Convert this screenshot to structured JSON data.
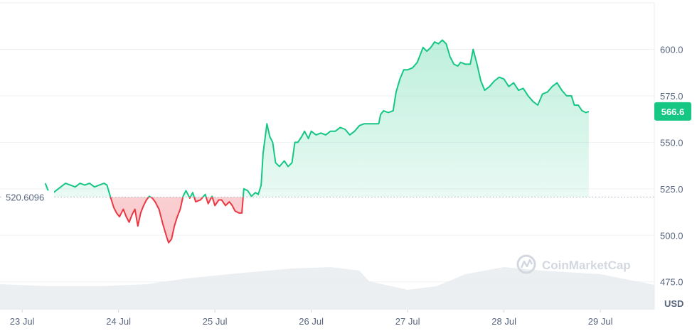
{
  "chart_data": {
    "type": "area",
    "title": "",
    "xlabel": "",
    "ylabel": "",
    "unit": "USD",
    "current_price": "566.6",
    "reference_price": "520.6096",
    "reference_value": 520.6096,
    "ylim": [
      460,
      625
    ],
    "y_ticks": [
      {
        "value": 475,
        "label": "475.0"
      },
      {
        "value": 500,
        "label": "500.0"
      },
      {
        "value": 525,
        "label": "525.0"
      },
      {
        "value": 550,
        "label": "550.0"
      },
      {
        "value": 575,
        "label": "575.0"
      },
      {
        "value": 600,
        "label": "600.0"
      }
    ],
    "x_ticks": [
      {
        "day": 0,
        "label": "23 Jul"
      },
      {
        "day": 1,
        "label": "24 Jul"
      },
      {
        "day": 2,
        "label": "25 Jul"
      },
      {
        "day": 3,
        "label": "26 Jul"
      },
      {
        "day": 4,
        "label": "27 Jul"
      },
      {
        "day": 5,
        "label": "28 Jul"
      },
      {
        "day": 6,
        "label": "29 Jul"
      }
    ],
    "x_range": [
      -0.23,
      6.56
    ],
    "colors": {
      "up": "#16c784",
      "down": "#ea3943",
      "grid": "#eff2f5",
      "volume": "#e6e9ee",
      "badge": "#16c784"
    },
    "series": [
      {
        "points": [
          [
            0.24,
            528
          ],
          [
            0.27,
            524
          ],
          [
            0.3,
            522
          ],
          [
            0.35,
            524
          ],
          [
            0.4,
            526
          ],
          [
            0.45,
            528
          ],
          [
            0.5,
            527
          ],
          [
            0.55,
            526
          ],
          [
            0.6,
            528
          ],
          [
            0.65,
            527
          ],
          [
            0.7,
            528
          ],
          [
            0.75,
            526
          ],
          [
            0.8,
            527
          ],
          [
            0.85,
            528
          ],
          [
            0.88,
            527
          ],
          [
            0.92,
            520
          ],
          [
            0.95,
            515
          ],
          [
            0.98,
            512
          ],
          [
            1.01,
            510
          ],
          [
            1.05,
            514
          ],
          [
            1.08,
            510
          ],
          [
            1.11,
            507
          ],
          [
            1.14,
            511
          ],
          [
            1.17,
            514
          ],
          [
            1.2,
            505
          ],
          [
            1.23,
            512
          ],
          [
            1.26,
            516
          ],
          [
            1.29,
            519
          ],
          [
            1.32,
            521
          ],
          [
            1.35,
            520
          ],
          [
            1.38,
            518
          ],
          [
            1.42,
            514
          ],
          [
            1.46,
            506
          ],
          [
            1.5,
            499
          ],
          [
            1.52,
            496
          ],
          [
            1.55,
            498
          ],
          [
            1.58,
            505
          ],
          [
            1.61,
            510
          ],
          [
            1.64,
            514
          ],
          [
            1.67,
            521
          ],
          [
            1.7,
            524
          ],
          [
            1.74,
            520
          ],
          [
            1.77,
            523
          ],
          [
            1.8,
            518
          ],
          [
            1.85,
            519
          ],
          [
            1.9,
            522
          ],
          [
            1.93,
            517
          ],
          [
            1.97,
            521
          ],
          [
            2.0,
            516
          ],
          [
            2.04,
            519
          ],
          [
            2.07,
            519
          ],
          [
            2.11,
            516
          ],
          [
            2.15,
            518
          ],
          [
            2.18,
            516
          ],
          [
            2.21,
            513
          ],
          [
            2.25,
            512
          ],
          [
            2.28,
            512
          ],
          [
            2.3,
            525
          ],
          [
            2.34,
            524
          ],
          [
            2.38,
            521
          ],
          [
            2.42,
            523
          ],
          [
            2.45,
            522
          ],
          [
            2.48,
            527
          ],
          [
            2.5,
            544
          ],
          [
            2.52,
            552
          ],
          [
            2.54,
            560
          ],
          [
            2.57,
            553
          ],
          [
            2.6,
            550
          ],
          [
            2.63,
            539
          ],
          [
            2.67,
            537
          ],
          [
            2.72,
            540
          ],
          [
            2.76,
            537
          ],
          [
            2.8,
            539
          ],
          [
            2.83,
            550
          ],
          [
            2.86,
            550
          ],
          [
            2.9,
            553
          ],
          [
            2.93,
            556
          ],
          [
            2.97,
            552
          ],
          [
            3.0,
            556
          ],
          [
            3.05,
            554
          ],
          [
            3.1,
            555
          ],
          [
            3.15,
            554
          ],
          [
            3.2,
            556
          ],
          [
            3.25,
            556
          ],
          [
            3.3,
            558
          ],
          [
            3.35,
            557
          ],
          [
            3.4,
            554
          ],
          [
            3.45,
            556
          ],
          [
            3.5,
            559
          ],
          [
            3.55,
            560
          ],
          [
            3.6,
            560
          ],
          [
            3.65,
            560
          ],
          [
            3.7,
            560
          ],
          [
            3.72,
            565
          ],
          [
            3.75,
            567
          ],
          [
            3.8,
            566
          ],
          [
            3.85,
            567
          ],
          [
            3.88,
            577
          ],
          [
            3.92,
            584
          ],
          [
            3.96,
            589
          ],
          [
            4.0,
            589
          ],
          [
            4.05,
            590
          ],
          [
            4.1,
            593
          ],
          [
            4.13,
            597
          ],
          [
            4.16,
            601
          ],
          [
            4.2,
            599
          ],
          [
            4.24,
            601
          ],
          [
            4.28,
            604
          ],
          [
            4.32,
            603
          ],
          [
            4.36,
            605
          ],
          [
            4.4,
            603
          ],
          [
            4.44,
            596
          ],
          [
            4.48,
            592
          ],
          [
            4.52,
            591
          ],
          [
            4.55,
            593
          ],
          [
            4.6,
            592
          ],
          [
            4.65,
            592
          ],
          [
            4.68,
            600
          ],
          [
            4.72,
            592
          ],
          [
            4.76,
            583
          ],
          [
            4.8,
            578
          ],
          [
            4.85,
            580
          ],
          [
            4.9,
            583
          ],
          [
            4.95,
            585
          ],
          [
            5.0,
            584
          ],
          [
            5.05,
            580
          ],
          [
            5.1,
            582
          ],
          [
            5.15,
            578
          ],
          [
            5.2,
            579
          ],
          [
            5.25,
            575
          ],
          [
            5.3,
            572
          ],
          [
            5.35,
            570
          ],
          [
            5.4,
            576
          ],
          [
            5.45,
            577
          ],
          [
            5.5,
            580
          ],
          [
            5.55,
            582
          ],
          [
            5.6,
            578
          ],
          [
            5.65,
            575
          ],
          [
            5.7,
            575
          ],
          [
            5.73,
            570
          ],
          [
            5.77,
            570
          ],
          [
            5.81,
            567
          ],
          [
            5.85,
            566
          ],
          [
            5.88,
            566.6
          ]
        ]
      }
    ],
    "volume": [
      [
        -0.23,
        0.36
      ],
      [
        0.3,
        0.33
      ],
      [
        0.8,
        0.33
      ],
      [
        1.3,
        0.36
      ],
      [
        1.7,
        0.44
      ],
      [
        2.3,
        0.52
      ],
      [
        2.8,
        0.58
      ],
      [
        3.2,
        0.6
      ],
      [
        3.5,
        0.55
      ],
      [
        3.6,
        0.4
      ],
      [
        4.0,
        0.28
      ],
      [
        4.3,
        0.33
      ],
      [
        4.6,
        0.5
      ],
      [
        5.0,
        0.6
      ],
      [
        5.4,
        0.55
      ],
      [
        6.0,
        0.5
      ],
      [
        6.56,
        0.35
      ]
    ]
  },
  "watermark": {
    "text": "CoinMarketCap",
    "icon": "coinmarketcap-logo-icon"
  }
}
